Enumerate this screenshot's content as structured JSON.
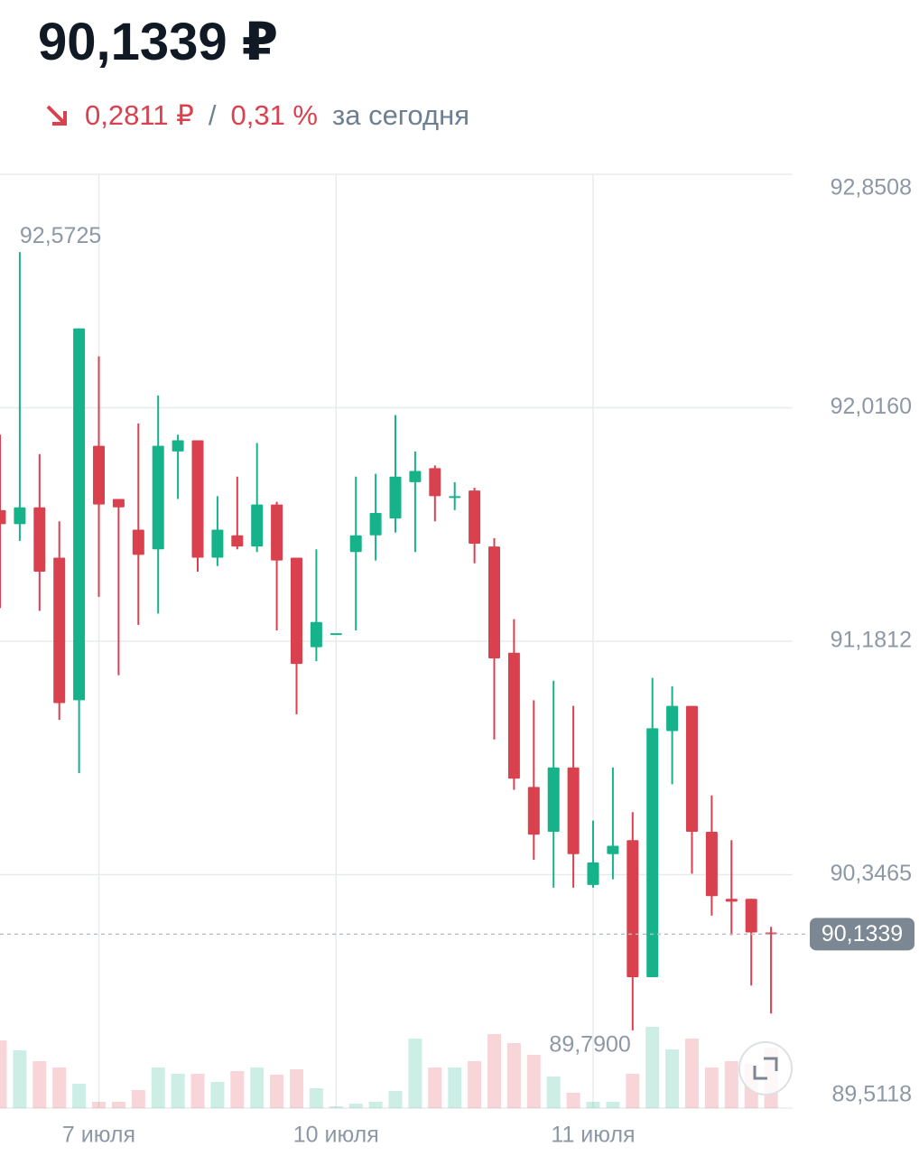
{
  "header": {
    "price": "90,1339 ₽",
    "change": "0,2811 ₽",
    "separator": "/",
    "change_pct": "0,31 %",
    "period": "за сегодня"
  },
  "chart_data": {
    "type": "candlestick",
    "categories": [
      null,
      null,
      null,
      null,
      null,
      "7 июля",
      null,
      null,
      null,
      null,
      null,
      null,
      null,
      null,
      null,
      null,
      null,
      "10 июля",
      null,
      null,
      null,
      null,
      null,
      null,
      null,
      null,
      null,
      null,
      null,
      null,
      "11 июля",
      null,
      null,
      null,
      null,
      null,
      null,
      null,
      null,
      null
    ],
    "open": [
      91.65,
      91.6,
      91.66,
      91.48,
      90.97,
      91.88,
      91.69,
      91.58,
      91.51,
      91.86,
      91.9,
      91.48,
      91.56,
      91.52,
      91.67,
      91.48,
      91.16,
      91.21,
      91.5,
      91.56,
      91.62,
      91.75,
      91.8,
      91.7,
      91.72,
      91.52,
      91.14,
      90.66,
      90.5,
      90.73,
      90.31,
      90.42,
      90.47,
      89.98,
      90.86,
      90.95,
      90.5,
      90.26,
      90.26,
      90.14
    ],
    "high": [
      91.92,
      92.5725,
      91.85,
      91.61,
      92.3,
      92.2,
      91.69,
      91.96,
      92.06,
      91.92,
      91.9,
      91.7,
      91.77,
      91.89,
      91.68,
      91.48,
      91.51,
      91.21,
      91.77,
      91.78,
      91.99,
      91.86,
      91.81,
      91.75,
      91.73,
      91.55,
      91.26,
      90.97,
      91.04,
      90.95,
      90.54,
      90.73,
      90.57,
      91.05,
      91.02,
      90.95,
      90.63,
      90.47,
      90.26,
      90.16
    ],
    "low": [
      91.3,
      91.54,
      91.29,
      90.9,
      90.71,
      91.34,
      91.06,
      91.24,
      91.28,
      91.69,
      91.43,
      91.45,
      91.51,
      91.5,
      91.22,
      90.92,
      91.11,
      91.21,
      91.22,
      91.47,
      91.57,
      91.5,
      91.61,
      91.65,
      91.46,
      90.83,
      90.65,
      90.4,
      90.3,
      90.3,
      90.3,
      90.33,
      89.79,
      89.98,
      90.67,
      90.35,
      90.2,
      90.13,
      89.95,
      89.85
    ],
    "close": [
      91.6,
      91.66,
      91.43,
      90.96,
      92.3,
      91.67,
      91.66,
      91.49,
      91.88,
      91.9,
      91.48,
      91.58,
      91.52,
      91.67,
      91.47,
      91.1,
      91.25,
      91.21,
      91.56,
      91.64,
      91.77,
      91.79,
      91.7,
      91.7,
      91.53,
      91.12,
      90.69,
      90.49,
      90.73,
      90.42,
      90.39,
      90.45,
      89.98,
      90.87,
      90.95,
      90.5,
      90.27,
      90.25,
      90.14,
      90.1339
    ],
    "volume": [
      75,
      64,
      52,
      45,
      27,
      7,
      7,
      20,
      45,
      38,
      38,
      29,
      41,
      45,
      37,
      43,
      22,
      2,
      5,
      7,
      19,
      77,
      45,
      45,
      52,
      82,
      72,
      59,
      35,
      17,
      7,
      7,
      38,
      90,
      65,
      77,
      45,
      52,
      49,
      67
    ],
    "up_color": "#16b38a",
    "down_color": "#d9414f",
    "ylim": [
      89.5118,
      92.8508
    ],
    "yticks": [
      {
        "value": 89.5118,
        "label": "89,5118"
      },
      {
        "value": 90.3465,
        "label": "90,3465"
      },
      {
        "value": 91.1812,
        "label": "91,1812"
      },
      {
        "value": 92.016,
        "label": "92,0160"
      },
      {
        "value": 92.8508,
        "label": "92,8508"
      }
    ],
    "grid": true,
    "max_annotation": {
      "value": 92.5725,
      "label": "92,5725"
    },
    "min_annotation": {
      "value": 89.79,
      "label": "89,7900"
    },
    "last_price": {
      "value": 90.1339,
      "label": "90,1339"
    }
  }
}
